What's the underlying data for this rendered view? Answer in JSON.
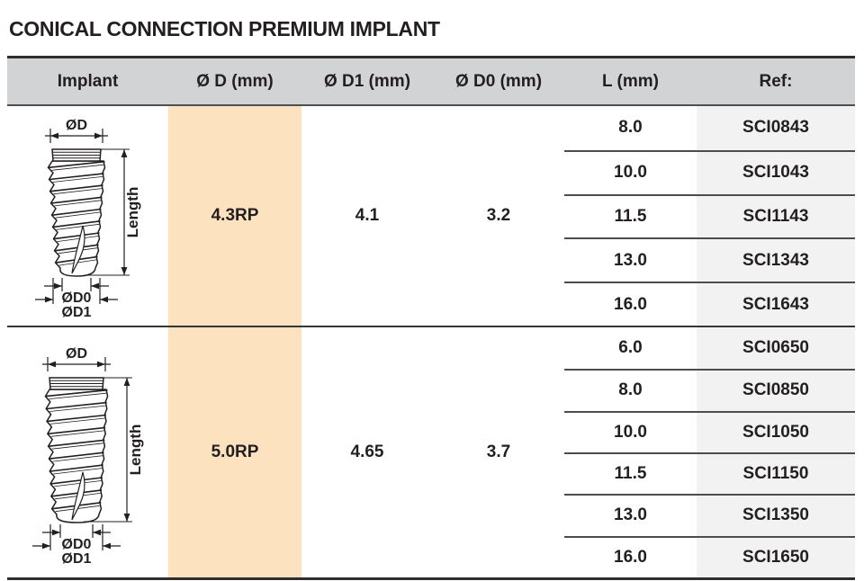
{
  "title": "CONICAL CONNECTION PREMIUM IMPLANT",
  "colors": {
    "header_bg": "#d2d3d5",
    "highlight_column_bg": "#fce2bf",
    "ref_column_bg": "#f2f2f3",
    "text": "#231f20",
    "rule_dark": "#2e2e30",
    "rule_row": "#4c4c4e"
  },
  "table": {
    "headers": [
      "Implant",
      "Ø D (mm)",
      "Ø D1 (mm)",
      "Ø D0 (mm)",
      "L (mm)",
      "Ref:"
    ],
    "diagram_labels": {
      "d": "ØD",
      "length": "Length",
      "d0": "ØD0",
      "d1": "ØD1"
    },
    "groups": [
      {
        "d": "4.3RP",
        "d1": "4.1",
        "d0": "3.2",
        "rows": [
          {
            "l": "8.0",
            "ref": "SCI0843"
          },
          {
            "l": "10.0",
            "ref": "SCI1043"
          },
          {
            "l": "11.5",
            "ref": "SCI1143"
          },
          {
            "l": "13.0",
            "ref": "SCI1343"
          },
          {
            "l": "16.0",
            "ref": "SCI1643"
          }
        ]
      },
      {
        "d": "5.0RP",
        "d1": "4.65",
        "d0": "3.7",
        "rows": [
          {
            "l": "6.0",
            "ref": "SCI0650"
          },
          {
            "l": "8.0",
            "ref": "SCI0850"
          },
          {
            "l": "10.0",
            "ref": "SCI1050"
          },
          {
            "l": "11.5",
            "ref": "SCI1150"
          },
          {
            "l": "13.0",
            "ref": "SCI1350"
          },
          {
            "l": "16.0",
            "ref": "SCI1650"
          }
        ]
      }
    ]
  }
}
